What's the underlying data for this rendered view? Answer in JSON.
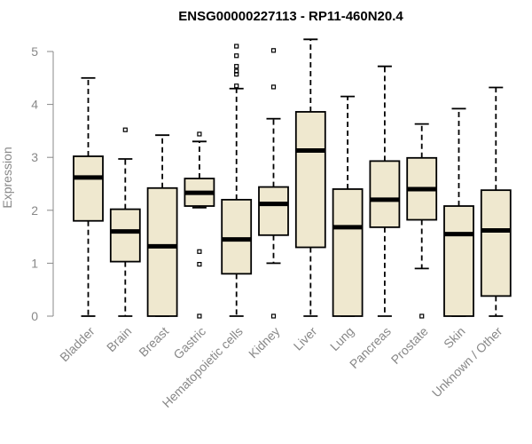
{
  "chart_data": {
    "type": "boxplot",
    "title": "ENSG00000227113 - RP11-460N20.4",
    "xlabel": "",
    "ylabel": "Expression",
    "ylim": [
      0,
      5.25
    ],
    "yticks": [
      0,
      1,
      2,
      3,
      4,
      5
    ],
    "box_color": "#efe8cf",
    "categories": [
      "Bladder",
      "Brain",
      "Breast",
      "Gastric",
      "Hematopoietic cells",
      "Kidney",
      "Liver",
      "Lung",
      "Pancreas",
      "Prostate",
      "Skin",
      "Unknown / Other"
    ],
    "boxes": [
      {
        "category": "Bladder",
        "min": 0,
        "q1": 1.8,
        "median": 2.62,
        "q3": 3.02,
        "max": 4.5,
        "outliers": []
      },
      {
        "category": "Brain",
        "min": 0,
        "q1": 1.03,
        "median": 1.6,
        "q3": 2.02,
        "max": 2.97,
        "outliers": [
          3.52
        ]
      },
      {
        "category": "Breast",
        "min": 0,
        "q1": 0,
        "median": 1.32,
        "q3": 2.42,
        "max": 3.42,
        "outliers": []
      },
      {
        "category": "Gastric",
        "min": 2.05,
        "q1": 2.08,
        "median": 2.33,
        "q3": 2.6,
        "max": 3.3,
        "outliers": [
          3.44,
          1.22,
          0.98,
          0
        ]
      },
      {
        "category": "Hematopoietic cells",
        "min": 0,
        "q1": 0.8,
        "median": 1.45,
        "q3": 2.2,
        "max": 4.3,
        "outliers": [
          4.35,
          4.57,
          4.63,
          4.72,
          4.92,
          5.1
        ]
      },
      {
        "category": "Kidney",
        "min": 1.0,
        "q1": 1.53,
        "median": 2.12,
        "q3": 2.44,
        "max": 3.73,
        "outliers": [
          5.02,
          4.33,
          0
        ]
      },
      {
        "category": "Liver",
        "min": 0,
        "q1": 1.3,
        "median": 3.13,
        "q3": 3.86,
        "max": 5.23,
        "outliers": []
      },
      {
        "category": "Lung",
        "min": 0,
        "q1": 0,
        "median": 1.68,
        "q3": 2.4,
        "max": 4.15,
        "outliers": []
      },
      {
        "category": "Pancreas",
        "min": 0,
        "q1": 1.68,
        "median": 2.2,
        "q3": 2.93,
        "max": 4.72,
        "outliers": []
      },
      {
        "category": "Prostate",
        "min": 0.9,
        "q1": 1.82,
        "median": 2.4,
        "q3": 2.99,
        "max": 3.63,
        "outliers": [
          0
        ]
      },
      {
        "category": "Skin",
        "min": 0,
        "q1": 0,
        "median": 1.55,
        "q3": 2.08,
        "max": 3.92,
        "outliers": []
      },
      {
        "category": "Unknown / Other",
        "min": 0,
        "q1": 0.38,
        "median": 1.62,
        "q3": 2.38,
        "max": 4.32,
        "outliers": []
      }
    ]
  }
}
